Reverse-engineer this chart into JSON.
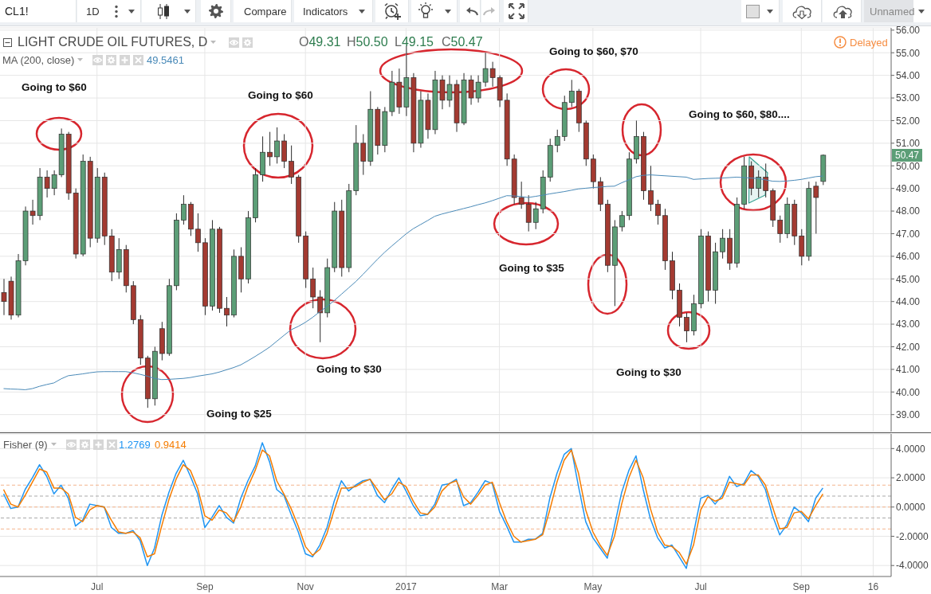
{
  "chart_data": [
    {
      "type": "candlestick",
      "title": "LIGHT CRUDE OIL FUTURES, D",
      "categories": [
        null,
        null,
        null,
        null,
        null,
        null,
        null,
        null,
        null,
        null,
        null,
        null,
        null,
        null,
        null,
        null,
        null,
        null,
        null,
        null,
        null,
        null,
        null,
        null,
        null,
        null,
        null,
        null,
        null,
        null,
        null,
        null,
        null,
        null,
        null,
        null,
        null,
        null,
        null,
        null,
        null,
        null,
        null,
        null,
        null,
        null,
        null,
        null,
        null,
        null,
        null,
        null,
        null,
        null,
        null,
        null,
        null,
        null,
        null,
        null,
        null,
        null,
        null,
        null,
        null,
        null,
        null,
        null,
        null,
        null,
        null,
        null,
        null,
        null,
        null,
        null,
        null,
        null,
        null,
        null,
        null,
        null,
        null,
        null,
        null,
        null,
        null,
        null,
        null,
        null,
        null,
        null,
        null,
        null,
        null,
        null,
        null,
        null,
        null,
        null,
        null,
        null,
        null,
        null,
        null,
        null,
        null,
        null,
        null,
        null,
        null,
        null,
        null,
        null,
        null,
        null,
        null,
        null,
        null,
        null,
        null,
        null,
        null,
        null
      ],
      "ohlc": [
        [
          44.4,
          45.0,
          43.4,
          44.0
        ],
        [
          44.9,
          45.1,
          43.2,
          43.4
        ],
        [
          43.4,
          46.1,
          43.3,
          45.8
        ],
        [
          45.8,
          48.2,
          45.6,
          48.0
        ],
        [
          48.0,
          48.5,
          47.4,
          47.8
        ],
        [
          47.8,
          49.9,
          47.6,
          49.5
        ],
        [
          49.5,
          49.8,
          48.6,
          49.0
        ],
        [
          49.0,
          49.8,
          48.7,
          49.6
        ],
        [
          49.6,
          51.65,
          49.5,
          51.4
        ],
        [
          51.4,
          51.5,
          48.5,
          48.8
        ],
        [
          48.8,
          49.0,
          45.9,
          46.1
        ],
        [
          46.1,
          50.5,
          46.0,
          50.2
        ],
        [
          50.2,
          50.4,
          46.4,
          46.8
        ],
        [
          46.8,
          49.9,
          46.6,
          49.5
        ],
        [
          49.5,
          49.7,
          46.5,
          46.9
        ],
        [
          46.9,
          47.2,
          44.9,
          45.3
        ],
        [
          45.3,
          46.8,
          45.0,
          46.3
        ],
        [
          46.3,
          46.5,
          44.4,
          44.7
        ],
        [
          44.7,
          44.9,
          43.0,
          43.2
        ],
        [
          43.2,
          43.4,
          41.2,
          41.5
        ],
        [
          41.5,
          41.6,
          39.3,
          39.7
        ],
        [
          39.7,
          42.0,
          39.4,
          41.8
        ],
        [
          42.8,
          43.1,
          41.4,
          41.7
        ],
        [
          41.7,
          45.0,
          41.6,
          44.7
        ],
        [
          44.7,
          47.9,
          44.5,
          47.6
        ],
        [
          47.6,
          48.7,
          47.4,
          48.3
        ],
        [
          48.3,
          48.4,
          46.9,
          47.2
        ],
        [
          47.2,
          47.9,
          46.2,
          46.6
        ],
        [
          46.6,
          46.8,
          43.4,
          43.8
        ],
        [
          43.8,
          47.6,
          43.6,
          47.2
        ],
        [
          47.2,
          47.3,
          43.5,
          43.7
        ],
        [
          43.7,
          44.2,
          42.9,
          43.4
        ],
        [
          43.4,
          46.3,
          43.3,
          46.0
        ],
        [
          46.0,
          46.4,
          44.4,
          45.0
        ],
        [
          45.0,
          48.0,
          44.8,
          47.7
        ],
        [
          47.7,
          49.9,
          47.5,
          49.6
        ],
        [
          49.6,
          51.3,
          49.3,
          50.6
        ],
        [
          50.6,
          51.5,
          50.0,
          50.4
        ],
        [
          50.4,
          51.7,
          50.1,
          51.1
        ],
        [
          51.1,
          51.4,
          49.9,
          50.2
        ],
        [
          50.2,
          50.9,
          49.2,
          49.5
        ],
        [
          49.5,
          49.6,
          46.6,
          46.9
        ],
        [
          46.9,
          47.1,
          44.6,
          45.0
        ],
        [
          45.0,
          45.5,
          43.7,
          44.2
        ],
        [
          44.2,
          44.5,
          42.2,
          43.5
        ],
        [
          43.5,
          45.9,
          43.3,
          45.5
        ],
        [
          45.5,
          48.4,
          45.3,
          48.0
        ],
        [
          48.0,
          48.5,
          45.1,
          45.5
        ],
        [
          45.5,
          49.2,
          45.3,
          48.9
        ],
        [
          48.9,
          51.8,
          48.7,
          51.0
        ],
        [
          51.0,
          51.4,
          49.6,
          50.2
        ],
        [
          50.2,
          53.3,
          50.0,
          52.5
        ],
        [
          52.5,
          52.6,
          50.5,
          50.9
        ],
        [
          50.9,
          52.6,
          50.6,
          52.4
        ],
        [
          52.4,
          54.2,
          52.2,
          53.7
        ],
        [
          53.7,
          54.3,
          52.3,
          52.6
        ],
        [
          52.6,
          55.3,
          52.2,
          53.9
        ],
        [
          53.9,
          54.1,
          50.6,
          51.0
        ],
        [
          51.0,
          53.3,
          50.8,
          52.9
        ],
        [
          52.9,
          53.2,
          51.2,
          51.6
        ],
        [
          51.6,
          54.2,
          51.4,
          53.8
        ],
        [
          53.8,
          54.0,
          52.5,
          52.9
        ],
        [
          52.9,
          54.0,
          52.6,
          53.6
        ],
        [
          53.6,
          53.8,
          51.5,
          51.9
        ],
        [
          51.9,
          54.1,
          51.8,
          53.8
        ],
        [
          53.8,
          54.0,
          52.7,
          53.0
        ],
        [
          53.0,
          54.0,
          52.8,
          53.7
        ],
        [
          53.7,
          55.0,
          53.5,
          54.3
        ],
        [
          54.3,
          54.6,
          53.5,
          53.9
        ],
        [
          53.9,
          54.0,
          52.6,
          52.9
        ],
        [
          52.9,
          53.2,
          50.0,
          50.3
        ],
        [
          50.3,
          50.5,
          48.3,
          48.6
        ],
        [
          48.6,
          49.3,
          48.1,
          48.3
        ],
        [
          48.3,
          48.7,
          47.1,
          47.5
        ],
        [
          47.5,
          48.4,
          47.2,
          48.1
        ],
        [
          48.1,
          49.8,
          47.9,
          49.5
        ],
        [
          49.5,
          51.2,
          49.3,
          50.9
        ],
        [
          50.9,
          51.6,
          50.6,
          51.3
        ],
        [
          51.3,
          53.1,
          51.1,
          52.8
        ],
        [
          52.8,
          53.8,
          52.6,
          53.3
        ],
        [
          53.3,
          53.4,
          51.5,
          51.9
        ],
        [
          51.9,
          52.0,
          50.0,
          50.3
        ],
        [
          50.3,
          50.5,
          49.0,
          49.3
        ],
        [
          49.3,
          49.5,
          48.0,
          48.3
        ],
        [
          48.3,
          48.5,
          45.3,
          45.6
        ],
        [
          45.6,
          47.6,
          43.8,
          47.3
        ],
        [
          47.3,
          48.0,
          47.1,
          47.8
        ],
        [
          47.8,
          50.6,
          47.6,
          50.3
        ],
        [
          50.3,
          52.0,
          50.1,
          51.3
        ],
        [
          51.3,
          51.5,
          48.5,
          48.9
        ],
        [
          48.9,
          50.0,
          48.0,
          48.3
        ],
        [
          48.3,
          48.5,
          47.4,
          47.8
        ],
        [
          47.8,
          48.1,
          45.4,
          45.8
        ],
        [
          45.8,
          46.2,
          44.1,
          44.5
        ],
        [
          44.5,
          44.8,
          42.9,
          43.3
        ],
        [
          43.3,
          43.5,
          42.2,
          42.7
        ],
        [
          42.7,
          44.3,
          42.5,
          43.9
        ],
        [
          43.9,
          47.2,
          43.7,
          46.9
        ],
        [
          46.9,
          47.1,
          44.0,
          44.5
        ],
        [
          44.5,
          46.6,
          43.9,
          46.2
        ],
        [
          46.2,
          47.2,
          45.9,
          46.8
        ],
        [
          46.8,
          47.2,
          45.4,
          45.7
        ],
        [
          45.7,
          48.6,
          45.5,
          48.3
        ],
        [
          48.3,
          50.4,
          48.1,
          50.0
        ],
        [
          50.0,
          50.2,
          48.7,
          49.0
        ],
        [
          49.0,
          49.8,
          48.6,
          49.5
        ],
        [
          49.5,
          50.1,
          48.6,
          48.9
        ],
        [
          48.9,
          49.0,
          47.3,
          47.6
        ],
        [
          47.6,
          47.8,
          46.6,
          47.0
        ],
        [
          47.0,
          48.6,
          46.8,
          48.3
        ],
        [
          48.3,
          48.5,
          46.5,
          46.9
        ],
        [
          46.9,
          47.2,
          45.6,
          46.0
        ],
        [
          46.0,
          49.3,
          45.8,
          49.0
        ],
        [
          49.1,
          49.3,
          47.0,
          48.6
        ],
        [
          49.31,
          50.5,
          49.15,
          50.47
        ],
        null,
        null,
        null,
        null,
        null,
        null,
        null,
        null,
        null
      ],
      "series": [
        {
          "name": "MA (200, close)",
          "type": "line",
          "color": "#4a8ab8",
          "values": [
            40.15,
            40.13,
            40.12,
            40.1,
            40.15,
            40.25,
            40.33,
            40.4,
            40.58,
            40.72,
            40.76,
            40.8,
            40.85,
            40.89,
            40.9,
            40.9,
            40.9,
            40.9,
            40.85,
            40.78,
            40.7,
            40.6,
            40.55,
            40.56,
            40.58,
            40.6,
            40.64,
            40.7,
            40.75,
            40.8,
            40.88,
            40.98,
            41.08,
            41.2,
            41.38,
            41.57,
            41.77,
            41.98,
            42.24,
            42.5,
            42.75,
            42.9,
            43.08,
            43.3,
            43.55,
            43.78,
            44.04,
            44.32,
            44.6,
            44.88,
            45.2,
            45.53,
            45.86,
            46.17,
            46.45,
            46.72,
            46.99,
            47.22,
            47.4,
            47.58,
            47.77,
            47.87,
            47.95,
            48.03,
            48.11,
            48.19,
            48.28,
            48.36,
            48.46,
            48.57,
            48.68,
            48.67,
            48.64,
            48.6,
            48.65,
            48.7,
            48.76,
            48.81,
            48.86,
            48.92,
            48.98,
            49.01,
            49.04,
            49.06,
            49.09,
            49.1,
            49.25,
            49.38,
            49.52,
            49.58,
            49.6,
            49.58,
            49.56,
            49.54,
            49.52,
            49.5,
            49.4,
            49.42,
            49.44,
            49.45,
            49.46,
            49.48,
            49.5,
            49.48,
            49.46,
            49.44,
            49.38,
            49.32,
            49.31,
            49.33,
            49.36,
            49.4,
            49.46,
            49.52,
            49.55,
            null,
            null,
            null,
            null,
            null,
            null,
            null,
            null,
            null
          ]
        }
      ],
      "ylim": [
        38.25,
        56.1
      ],
      "yticks": [
        {
          "value": 39,
          "label": "39.00"
        },
        {
          "value": 40,
          "label": "40.00"
        },
        {
          "value": 41,
          "label": "41.00"
        },
        {
          "value": 42,
          "label": "42.00"
        },
        {
          "value": 43,
          "label": "43.00"
        },
        {
          "value": 44,
          "label": "44.00"
        },
        {
          "value": 45,
          "label": "45.00"
        },
        {
          "value": 46,
          "label": "46.00"
        },
        {
          "value": 47,
          "label": "47.00"
        },
        {
          "value": 48,
          "label": "48.00"
        },
        {
          "value": 49,
          "label": "49.00"
        },
        {
          "value": 50,
          "label": "50.00"
        },
        {
          "value": 51,
          "label": "51.00"
        },
        {
          "value": 52,
          "label": "52.00"
        },
        {
          "value": 53,
          "label": "53.00"
        },
        {
          "value": 54,
          "label": "54.00"
        },
        {
          "value": 55,
          "label": "55.00"
        },
        {
          "value": 56,
          "label": "56.00"
        }
      ],
      "grid": true,
      "tick_labels": "y",
      "annotations": [
        "Going to $60",
        "Going to $60",
        "Going to $60, $70",
        "Going to $60, $80....",
        "Going to $25",
        "Going to $30",
        "Going to $35",
        "Going to $30",
        "O49.31",
        "H50.50",
        "L49.15",
        "C50.47",
        "Delayed",
        {
          "text": "50.47",
          "y": 50.47
        },
        "49.5461",
        "CL1!",
        "1D",
        "Compare",
        "Indicators",
        "Unnamed"
      ]
    },
    {
      "type": "line",
      "title": "Fisher (9)",
      "categories": [
        null,
        null,
        null,
        null,
        null,
        null,
        null,
        null,
        null,
        null,
        null,
        null,
        null,
        "Jul",
        null,
        null,
        null,
        null,
        null,
        null,
        null,
        null,
        null,
        null,
        null,
        null,
        null,
        null,
        "Sep",
        null,
        null,
        null,
        null,
        null,
        null,
        null,
        null,
        null,
        null,
        null,
        null,
        null,
        "Nov",
        null,
        null,
        null,
        null,
        null,
        null,
        null,
        null,
        null,
        null,
        null,
        null,
        null,
        "2017",
        null,
        null,
        null,
        null,
        null,
        null,
        null,
        null,
        null,
        null,
        null,
        null,
        "Mar",
        null,
        null,
        null,
        null,
        null,
        null,
        null,
        null,
        null,
        null,
        null,
        null,
        "May",
        null,
        null,
        null,
        null,
        null,
        null,
        null,
        null,
        null,
        null,
        null,
        null,
        null,
        null,
        "Jul",
        null,
        null,
        null,
        null,
        null,
        null,
        null,
        null,
        null,
        null,
        null,
        null,
        null,
        "Sep",
        null,
        null,
        null,
        null,
        null,
        null,
        null,
        null,
        null,
        "16",
        null,
        null
      ],
      "series": [
        {
          "color": "#2196f3",
          "values": [
            0.9,
            -0.1,
            0.0,
            1.2,
            2.0,
            2.9,
            2.1,
            0.9,
            1.5,
            0.6,
            -1.3,
            -0.9,
            0.2,
            0.1,
            0.0,
            -1.4,
            -1.8,
            -1.8,
            -1.6,
            -2.3,
            -4.0,
            -2.8,
            -0.6,
            1.0,
            2.3,
            3.2,
            2.1,
            0.9,
            -1.4,
            -0.7,
            0.1,
            -0.7,
            -1.1,
            0.6,
            1.8,
            2.8,
            4.4,
            3.1,
            1.2,
            0.8,
            -0.5,
            -1.7,
            -3.2,
            -3.4,
            -2.6,
            -1.4,
            0.4,
            1.8,
            1.1,
            1.5,
            1.8,
            1.9,
            0.8,
            0.3,
            1.2,
            2.0,
            1.1,
            0.1,
            -0.6,
            -0.5,
            0.2,
            1.5,
            1.6,
            1.9,
            0.1,
            0.3,
            1.0,
            1.8,
            1.6,
            -0.3,
            -1.3,
            -2.4,
            -2.4,
            -2.2,
            -2.2,
            -1.8,
            0.6,
            2.3,
            3.6,
            4.0,
            1.4,
            -1.0,
            -2.1,
            -2.8,
            -3.5,
            -1.3,
            1.0,
            2.5,
            3.5,
            1.2,
            -0.8,
            -2.1,
            -2.8,
            -2.6,
            -3.4,
            -4.2,
            -1.8,
            0.6,
            0.8,
            0.2,
            0.8,
            2.1,
            1.4,
            1.6,
            2.5,
            2.1,
            1.2,
            -0.6,
            -1.9,
            -1.2,
            0.0,
            -0.4,
            -1.0,
            0.6,
            1.3,
            null,
            null,
            null,
            null,
            null,
            null,
            null,
            null,
            null
          ]
        },
        {
          "color": "#f57c00",
          "values": [
            1.2,
            0.2,
            0.0,
            0.8,
            1.7,
            2.6,
            2.4,
            1.3,
            1.3,
            0.9,
            -0.7,
            -1.0,
            -0.2,
            0.1,
            0.0,
            -0.9,
            -1.7,
            -1.8,
            -1.7,
            -2.1,
            -3.4,
            -3.2,
            -1.3,
            0.5,
            1.9,
            2.9,
            2.5,
            1.3,
            -0.6,
            -0.9,
            -0.2,
            -0.4,
            -1.0,
            0.0,
            1.4,
            2.5,
            3.9,
            3.5,
            1.8,
            0.9,
            -0.1,
            -1.3,
            -2.7,
            -3.3,
            -2.9,
            -1.8,
            -0.2,
            1.3,
            1.3,
            1.4,
            1.7,
            1.9,
            1.2,
            0.5,
            0.9,
            1.7,
            1.4,
            0.4,
            -0.4,
            -0.5,
            0.0,
            1.1,
            1.6,
            1.8,
            0.7,
            0.2,
            0.8,
            1.5,
            1.7,
            0.3,
            -1.0,
            -2.0,
            -2.4,
            -2.3,
            -2.2,
            -1.9,
            -0.2,
            1.7,
            3.2,
            3.9,
            2.3,
            -0.2,
            -1.7,
            -2.6,
            -3.3,
            -2.0,
            0.2,
            2.0,
            3.2,
            2.0,
            -0.1,
            -1.7,
            -2.6,
            -2.7,
            -3.1,
            -3.9,
            -2.6,
            -0.2,
            0.7,
            0.4,
            0.6,
            1.7,
            1.6,
            1.5,
            2.2,
            2.2,
            1.5,
            0.0,
            -1.5,
            -1.4,
            -0.4,
            -0.3,
            -0.8,
            0.1,
            0.9,
            null,
            null,
            null,
            null,
            null,
            null,
            null,
            null,
            null
          ]
        }
      ],
      "ylim": [
        -4.75,
        5.0
      ],
      "yticks": [
        {
          "value": -4,
          "label": "-4.0000"
        },
        {
          "value": -2,
          "label": "-2.0000"
        },
        {
          "value": 0,
          "label": "0.0000"
        },
        {
          "value": 2,
          "label": "2.0000"
        },
        {
          "value": 4,
          "label": "4.0000"
        }
      ],
      "grid": true,
      "ref_lines": [
        {
          "axis": "y",
          "value": 1.5,
          "color": "#f4b48c",
          "line_style": "dashed"
        },
        {
          "axis": "y",
          "value": 0.75,
          "color": "#a8a8a8",
          "line_style": "dashed"
        },
        {
          "axis": "y",
          "value": 0,
          "color": "#f4b48c",
          "line_style": "dashed"
        },
        {
          "axis": "y",
          "value": -0.75,
          "color": "#a8a8a8",
          "line_style": "dashed"
        },
        {
          "axis": "y",
          "value": -1.5,
          "color": "#f4b48c",
          "line_style": "dashed"
        }
      ],
      "annotations": [
        "1.2769",
        "0.9414"
      ]
    }
  ]
}
